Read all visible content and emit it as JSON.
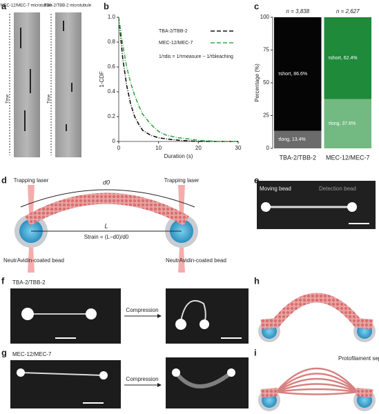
{
  "panels": {
    "letters": [
      "a",
      "b",
      "c",
      "d",
      "e",
      "f",
      "g",
      "h",
      "i"
    ],
    "a": {
      "label_left": "MEC-12/MEC-7 microtubule",
      "label_right": "TBA-2/TBB-2 microtubule",
      "time_left": "Time",
      "time_right": "Time"
    },
    "d": {
      "laser_left": "Trapping laser",
      "laser_right": "Trapping laser",
      "d0": "d0",
      "L": "L",
      "strain": "Strain = (L−d0)/d0",
      "bead_left": "NeutrAvidin-coated bead",
      "bead_right": "NeutrAvidin-coated bead"
    },
    "e": {
      "moving": "Moving bead",
      "detection": "Detection bead"
    },
    "f": {
      "label": "TBA-2/TBB-2",
      "arrow": "Compression"
    },
    "g": {
      "label": "MEC-12/MEC-7",
      "arrow": "Compression"
    },
    "i": {
      "label": "Protofilament separation"
    }
  },
  "chart_data": [
    {
      "type": "line",
      "xlabel": "Duration (s)",
      "ylabel": "1-CDF",
      "annotation": "1/τdis = 1/τmeasure − 1/τbleaching",
      "x": [
        0,
        1,
        2,
        3,
        4,
        5,
        6,
        8,
        10,
        12,
        15,
        20,
        25,
        30
      ],
      "series": [
        {
          "name": "TBA-2/TBB-2",
          "color": "#111111",
          "values": [
            1,
            0.67,
            0.45,
            0.3,
            0.2,
            0.14,
            0.09,
            0.05,
            0.03,
            0.02,
            0.01,
            0,
            0,
            0
          ]
        },
        {
          "name": "MEC-12/MEC-7",
          "color": "#3aa64a",
          "values": [
            1,
            0.78,
            0.6,
            0.47,
            0.37,
            0.29,
            0.22,
            0.14,
            0.08,
            0.05,
            0.03,
            0.01,
            0,
            0
          ]
        }
      ],
      "xlim": [
        0,
        30
      ],
      "xticks": [
        0,
        10,
        20,
        30
      ],
      "ylim": [
        0,
        1
      ],
      "yticks": [
        0,
        0.2,
        0.4,
        0.6,
        0.8,
        {
          "value": 1,
          "label": "1.0"
        }
      ]
    },
    {
      "type": "stacked_bar",
      "ylabel": "Percentage (%)",
      "categories": [
        "TBA-2/TBB-2",
        "MEC-12/MEC-7"
      ],
      "annotations": [
        "n = 3,838",
        "n = 2,627"
      ],
      "series": [
        {
          "name": "τlong",
          "colors": [
            "#6b6b6b",
            "#73b982"
          ],
          "values": [
            13.4,
            37.6
          ],
          "value_labels": [
            "τlong, 13.4%",
            "τlong, 37.6%"
          ]
        },
        {
          "name": "τshort",
          "colors": [
            "#050505",
            "#1e8a3a"
          ],
          "values": [
            86.6,
            62.4
          ],
          "value_labels": [
            "τshort, 86.6%",
            "τshort, 62.4%"
          ]
        }
      ],
      "ylim": [
        0,
        100
      ],
      "yticks": [
        0,
        25,
        50,
        75,
        100
      ]
    }
  ]
}
